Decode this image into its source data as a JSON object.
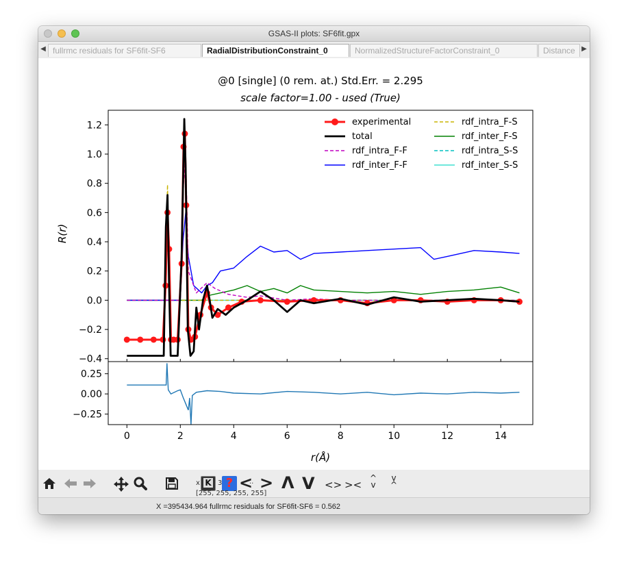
{
  "window": {
    "title": "GSAS-II plots: SF6fit.gpx"
  },
  "tabs": [
    {
      "label": "fullrmc residuals for SF6fit-SF6"
    },
    {
      "label": "RadialDistributionConstraint_0"
    },
    {
      "label": "NormalizedStructureFactorConstraint_0"
    },
    {
      "label": "Distance"
    }
  ],
  "chart_data": {
    "type": "line",
    "title_line1": "@0 [single] (0 rem. at.) Std.Err. = 2.295",
    "title_line2": "scale factor=1.00 - used (True)",
    "xlabel": "r(Å)",
    "ylabel": "R(r)",
    "xlim": [
      -0.7,
      15.2
    ],
    "main_ylim": [
      -0.42,
      1.3
    ],
    "resid_ylim": [
      -0.38,
      0.4
    ],
    "x_ticks": [
      "0",
      "2",
      "4",
      "6",
      "8",
      "10",
      "12",
      "14"
    ],
    "main_y_ticks": [
      "−0.4",
      "−0.2",
      "0.0",
      "0.2",
      "0.4",
      "0.6",
      "0.8",
      "1.0",
      "1.2"
    ],
    "resid_y_ticks": [
      "−0.25",
      "0.00",
      "0.25"
    ],
    "legend_position": "top-right",
    "series": [
      {
        "name": "experimental",
        "color": "#ff1a1a",
        "style": "line-markers",
        "x": [
          0,
          0.5,
          1.0,
          1.35,
          1.45,
          1.52,
          1.58,
          1.65,
          1.75,
          1.9,
          2.05,
          2.12,
          2.17,
          2.22,
          2.3,
          2.4,
          2.55,
          2.75,
          3.0,
          3.15,
          3.4,
          3.8,
          4.3,
          5.0,
          6.0,
          7.0,
          8.0,
          9.0,
          10.0,
          11.0,
          12.0,
          13.0,
          14.0,
          14.7
        ],
        "y": [
          -0.27,
          -0.27,
          -0.27,
          -0.27,
          0.1,
          0.6,
          0.35,
          -0.27,
          -0.27,
          -0.27,
          0.25,
          1.05,
          1.14,
          0.65,
          -0.2,
          -0.27,
          -0.25,
          -0.1,
          0.05,
          -0.05,
          -0.1,
          -0.05,
          -0.01,
          0.0,
          -0.01,
          0.0,
          0.0,
          -0.02,
          0.0,
          0.0,
          -0.01,
          0.0,
          0.0,
          -0.01
        ]
      },
      {
        "name": "total",
        "color": "#000000",
        "style": "line",
        "x": [
          0,
          1.0,
          1.38,
          1.46,
          1.52,
          1.58,
          1.64,
          1.72,
          1.9,
          2.05,
          2.15,
          2.2,
          2.28,
          2.38,
          2.5,
          2.6,
          2.7,
          2.85,
          3.0,
          3.1,
          3.2,
          3.4,
          3.7,
          4.0,
          4.5,
          5.0,
          5.5,
          6.0,
          6.5,
          7.0,
          8.0,
          9.0,
          10.0,
          11.0,
          12.0,
          13.0,
          14.0,
          14.7
        ],
        "y": [
          -0.38,
          -0.38,
          -0.38,
          0.5,
          0.72,
          0.1,
          -0.38,
          -0.38,
          -0.38,
          0.3,
          1.24,
          0.9,
          -0.2,
          -0.38,
          -0.35,
          -0.05,
          -0.2,
          0.0,
          0.1,
          0.0,
          -0.12,
          -0.06,
          -0.1,
          -0.05,
          0.0,
          0.06,
          0.0,
          -0.08,
          0.0,
          -0.02,
          0.01,
          -0.03,
          0.02,
          -0.01,
          0.0,
          0.01,
          0.0,
          -0.01
        ]
      },
      {
        "name": "rdf_intra_F-F",
        "color": "#c000c0",
        "style": "dashed",
        "x": [
          0,
          2.0,
          2.12,
          2.2,
          2.3,
          2.6,
          3.0,
          3.3,
          3.8,
          4.5,
          5.0,
          6.0,
          7.0,
          8.0,
          10.0,
          12.0,
          14.7
        ],
        "y": [
          0,
          0,
          0.8,
          1.0,
          0.2,
          0.05,
          0.12,
          0.08,
          0.04,
          0.02,
          0.03,
          0.0,
          0.01,
          0.0,
          0.0,
          0.0,
          0.0
        ]
      },
      {
        "name": "rdf_inter_F-F",
        "color": "#0000ff",
        "style": "line",
        "x": [
          0,
          2.0,
          2.1,
          2.2,
          2.3,
          2.5,
          2.8,
          3.0,
          3.2,
          3.5,
          4.0,
          4.5,
          5.0,
          5.5,
          6.0,
          6.5,
          7.0,
          8.0,
          9.0,
          10.0,
          11.0,
          11.5,
          12.0,
          13.0,
          14.0,
          14.7
        ],
        "y": [
          0,
          0,
          0.4,
          0.6,
          0.3,
          0.1,
          0.05,
          0.1,
          0.12,
          0.2,
          0.22,
          0.3,
          0.37,
          0.33,
          0.34,
          0.28,
          0.32,
          0.33,
          0.34,
          0.35,
          0.36,
          0.28,
          0.3,
          0.34,
          0.33,
          0.32
        ]
      },
      {
        "name": "rdf_intra_F-S",
        "color": "#c8b400",
        "style": "dashed",
        "x": [
          0,
          1.4,
          1.48,
          1.52,
          1.56,
          1.64,
          2.0,
          14.7
        ],
        "y": [
          0,
          0,
          0.5,
          0.79,
          0.4,
          0.0,
          0.0,
          0.0
        ]
      },
      {
        "name": "rdf_inter_F-S",
        "color": "#008000",
        "style": "line",
        "x": [
          0,
          2.8,
          3.0,
          3.5,
          4.0,
          4.5,
          5.0,
          5.5,
          6.0,
          6.5,
          7.0,
          8.0,
          9.0,
          10.0,
          11.0,
          12.0,
          13.0,
          14.0,
          14.7
        ],
        "y": [
          0,
          0,
          0.03,
          0.05,
          0.07,
          0.1,
          0.06,
          0.08,
          0.05,
          0.1,
          0.07,
          0.06,
          0.05,
          0.06,
          0.04,
          0.06,
          0.07,
          0.09,
          0.05
        ]
      },
      {
        "name": "rdf_intra_S-S",
        "color": "#00c0c0",
        "style": "dashed",
        "x": [
          0,
          14.7
        ],
        "y": [
          0,
          0
        ]
      },
      {
        "name": "rdf_inter_S-S",
        "color": "#40e0d0",
        "style": "line",
        "x": [
          0,
          14.7
        ],
        "y": [
          0,
          0
        ]
      }
    ],
    "residual": {
      "color": "#1f77b4",
      "x": [
        0,
        1.4,
        1.47,
        1.5,
        1.55,
        1.65,
        1.9,
        2.0,
        2.1,
        2.2,
        2.3,
        2.35,
        2.4,
        2.45,
        2.6,
        3.0,
        3.5,
        4.0,
        5.0,
        6.0,
        7.0,
        8.0,
        9.0,
        10.0,
        11.0,
        12.0,
        13.0,
        14.0,
        14.7
      ],
      "y": [
        0.11,
        0.11,
        0.11,
        0.38,
        0.05,
        0.0,
        0.04,
        0.05,
        -0.04,
        -0.12,
        -0.2,
        -0.05,
        -0.38,
        -0.02,
        0.02,
        0.04,
        0.03,
        0.01,
        0.0,
        0.03,
        0.02,
        0.0,
        0.02,
        -0.01,
        0.01,
        0.0,
        0.02,
        0.01,
        0.02
      ]
    }
  },
  "toolbar": {
    "home_icon": "home-icon",
    "back_icon": "left-arrow-icon",
    "forward_icon": "right-arrow-icon",
    "pan_icon": "pan-arrows-icon",
    "zoom_icon": "magnifier-icon",
    "save_icon": "floppy-disk-icon",
    "key_icon": "keyboard-K-icon",
    "help_icon": "help-question-icon",
    "lt": "<",
    "gt": ">",
    "up": "Λ",
    "down": "V",
    "diamond": "<>",
    "bow": "><",
    "v_diamond_top": "^",
    "v_diamond_bottom": "v",
    "v_bow_top": "v",
    "v_bow_bottom": "^",
    "coord_prefix": "x",
    "coord_partial": "3",
    "coord_eq": "=",
    "coord_tail": "..",
    "rgba_text": "[255, 255, 255, 255]"
  },
  "status": {
    "text": "X =395434.964 fullrmc residuals for SF6fit-SF6 =    0.562"
  }
}
